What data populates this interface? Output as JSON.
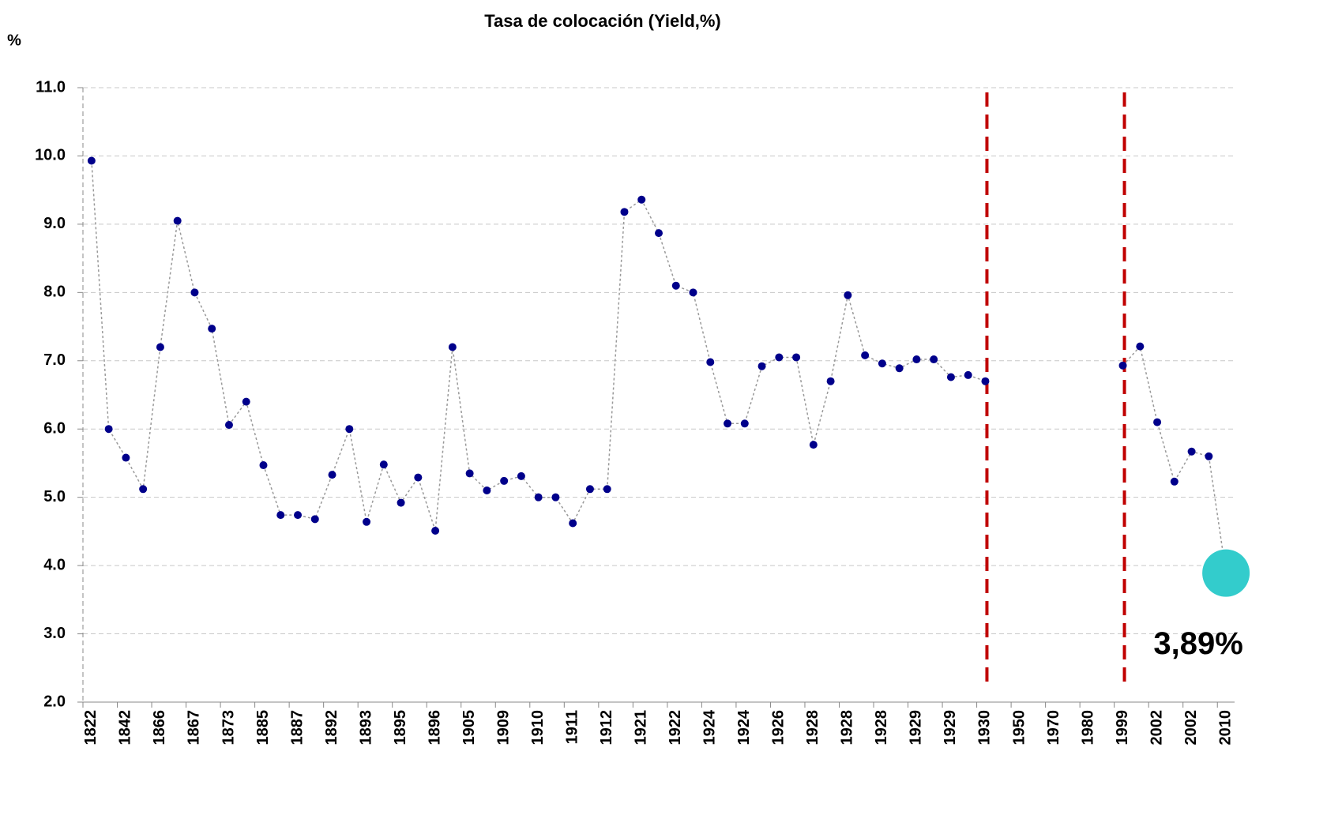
{
  "chart_data": {
    "type": "line",
    "title": "Tasa de colocación (Yield,%)",
    "y_label": "%",
    "categories": [
      "1822",
      null,
      "1842",
      null,
      "1866",
      null,
      "1867",
      null,
      "1873",
      null,
      "1885",
      null,
      "1887",
      null,
      "1892",
      null,
      "1893",
      null,
      "1895",
      null,
      "1896",
      null,
      "1905",
      null,
      "1909",
      null,
      "1910",
      null,
      "1911",
      null,
      "1912",
      null,
      "1921",
      null,
      "1922",
      null,
      "1924",
      null,
      "1924",
      null,
      "1926",
      null,
      "1928",
      null,
      "1928",
      null,
      "1928",
      null,
      "1929",
      null,
      "1929",
      null,
      "1930",
      null,
      "1950",
      null,
      "1970",
      null,
      "1980",
      null,
      "1999",
      null,
      "2002",
      null,
      "2002",
      null,
      "2010"
    ],
    "values": [
      9.93,
      6.0,
      5.58,
      5.12,
      7.2,
      9.05,
      8.0,
      7.47,
      6.06,
      6.4,
      5.47,
      4.74,
      4.74,
      4.68,
      5.33,
      6.0,
      4.64,
      5.48,
      4.92,
      5.29,
      4.51,
      7.2,
      5.35,
      5.1,
      5.24,
      5.31,
      5.0,
      5.0,
      4.62,
      5.12,
      5.12,
      9.18,
      9.36,
      8.87,
      8.1,
      8.0,
      6.98,
      6.08,
      6.08,
      6.92,
      7.05,
      7.05,
      5.77,
      6.7,
      7.96,
      7.08,
      6.96,
      6.89,
      7.02,
      7.02,
      6.76,
      6.79,
      6.7,
      null,
      null,
      null,
      null,
      null,
      null,
      null,
      6.93,
      7.21,
      6.1,
      5.23,
      5.67,
      5.6,
      3.89
    ],
    "value_labels": [
      null,
      null,
      null,
      null,
      null,
      null,
      null,
      null,
      null,
      null,
      null,
      null,
      null,
      null,
      null,
      null,
      null,
      null,
      null,
      null,
      null,
      null,
      null,
      null,
      null,
      null,
      null,
      null,
      null,
      null,
      null,
      null,
      null,
      null,
      null,
      null,
      null,
      null,
      null,
      null,
      null,
      null,
      null,
      null,
      null,
      null,
      null,
      null,
      null,
      null,
      null,
      null,
      null,
      null,
      null,
      null,
      null,
      null,
      null,
      null,
      null,
      null,
      null,
      null,
      null,
      null,
      "3,89%"
    ],
    "marker_color": "#00008b",
    "line_color": "#999999",
    "highlight_color": "#33cccc",
    "vertical_lines": [
      "1930",
      "1999"
    ],
    "vertical_line_color": "#c00000",
    "ylim": [
      2,
      11
    ],
    "yticks": [
      {
        "value": 2,
        "label": "2.0"
      },
      {
        "value": 3,
        "label": "3.0"
      },
      {
        "value": 4,
        "label": "4.0"
      },
      {
        "value": 5,
        "label": "5.0"
      },
      {
        "value": 6,
        "label": "6.0"
      },
      {
        "value": 7,
        "label": "7.0"
      },
      {
        "value": 8,
        "label": "8.0"
      },
      {
        "value": 9,
        "label": "9.0"
      },
      {
        "value": 10,
        "label": "10.0"
      },
      {
        "value": 11,
        "label": "11.0"
      }
    ],
    "grid": true
  }
}
